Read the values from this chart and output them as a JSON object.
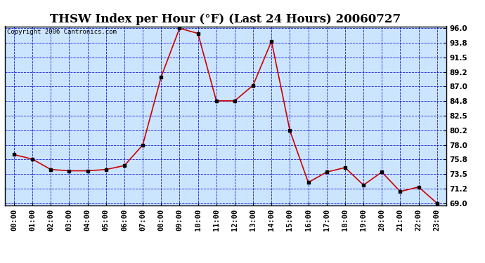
{
  "title": "THSW Index per Hour (°F) (Last 24 Hours) 20060727",
  "copyright": "Copyright 2006 Cantronics.com",
  "hours": [
    "00:00",
    "01:00",
    "02:00",
    "03:00",
    "04:00",
    "05:00",
    "06:00",
    "07:00",
    "08:00",
    "09:00",
    "10:00",
    "11:00",
    "12:00",
    "13:00",
    "14:00",
    "15:00",
    "16:00",
    "17:00",
    "18:00",
    "19:00",
    "20:00",
    "21:00",
    "22:00",
    "23:00"
  ],
  "values": [
    76.5,
    75.8,
    74.2,
    74.0,
    74.0,
    74.2,
    74.8,
    78.0,
    88.5,
    96.0,
    95.2,
    84.8,
    84.8,
    87.2,
    94.0,
    80.2,
    72.2,
    73.8,
    74.5,
    71.8,
    73.8,
    70.8,
    71.5,
    69.0
  ],
  "ylim_min": 69.0,
  "ylim_max": 96.0,
  "yticks": [
    69.0,
    71.2,
    73.5,
    75.8,
    78.0,
    80.2,
    82.5,
    84.8,
    87.0,
    89.2,
    91.5,
    93.8,
    96.0
  ],
  "line_color": "#cc0000",
  "marker_color": "#000000",
  "fig_bg_color": "#ffffff",
  "plot_bg_color": "#cce5ff",
  "grid_color": "#0000cc",
  "title_color": "#000000",
  "border_color": "#000000",
  "title_fontsize": 12,
  "copyright_fontsize": 6.5,
  "tick_fontsize": 7.5,
  "ytick_labels": [
    "69.0",
    "71.2",
    "73.5",
    "75.8",
    "78.0",
    "80.2",
    "82.5",
    "84.8",
    "87.0",
    "89.2",
    "91.5",
    "93.8",
    "96.0"
  ]
}
